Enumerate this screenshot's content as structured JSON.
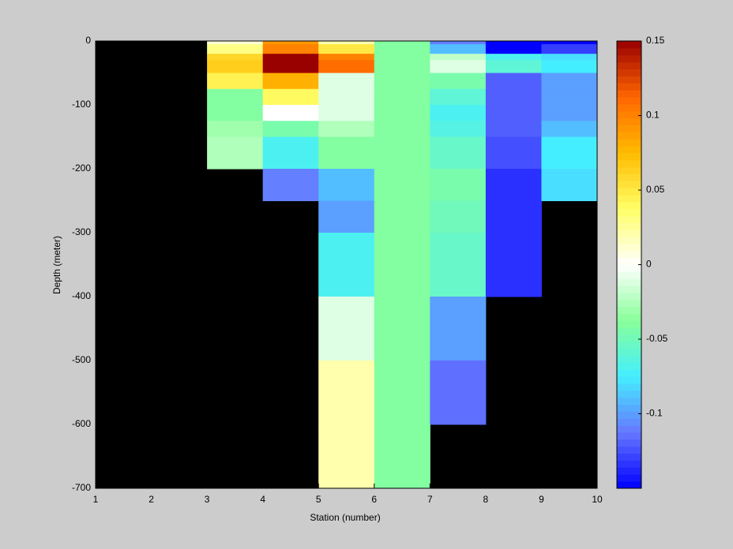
{
  "chart_data": {
    "type": "heatmap",
    "x_label": "Station (number)",
    "y_label": "Depth (meter)",
    "x_bins": [
      1,
      2,
      3,
      4,
      5,
      6,
      7,
      8,
      9,
      10
    ],
    "y_bins": [
      0,
      -5,
      -20,
      -30,
      -50,
      -75,
      -100,
      -125,
      -150,
      -200,
      -250,
      -300,
      -400,
      -500,
      -600,
      -700
    ],
    "values": [
      [
        null,
        null,
        0.01,
        0.09,
        0.02,
        -0.04,
        -0.11,
        -0.15,
        -0.15
      ],
      [
        null,
        null,
        0.03,
        0.1,
        0.05,
        -0.04,
        -0.09,
        -0.15,
        -0.13
      ],
      [
        null,
        null,
        0.06,
        0.15,
        0.1,
        -0.04,
        -0.02,
        -0.07,
        -0.08
      ],
      [
        null,
        null,
        0.065,
        0.15,
        0.11,
        -0.04,
        -0.01,
        -0.06,
        -0.075
      ],
      [
        null,
        null,
        0.045,
        0.08,
        -0.01,
        -0.04,
        -0.045,
        -0.12,
        -0.1
      ],
      [
        null,
        null,
        -0.04,
        0.04,
        -0.01,
        -0.04,
        -0.06,
        -0.12,
        -0.1
      ],
      [
        null,
        null,
        -0.04,
        0.0,
        -0.01,
        -0.04,
        -0.07,
        -0.12,
        -0.1
      ],
      [
        null,
        null,
        -0.03,
        -0.045,
        -0.025,
        -0.04,
        -0.065,
        -0.12,
        -0.09
      ],
      [
        null,
        null,
        -0.025,
        -0.07,
        -0.04,
        -0.04,
        -0.055,
        -0.125,
        -0.075
      ],
      [
        null,
        null,
        null,
        -0.11,
        -0.09,
        -0.04,
        -0.045,
        -0.135,
        -0.08
      ],
      [
        null,
        null,
        null,
        null,
        -0.1,
        -0.04,
        -0.05,
        -0.135,
        null
      ],
      [
        null,
        null,
        null,
        null,
        -0.07,
        -0.04,
        -0.055,
        -0.135,
        null
      ],
      [
        null,
        null,
        null,
        null,
        -0.01,
        -0.04,
        -0.1,
        null,
        null
      ],
      [
        null,
        null,
        null,
        null,
        0.02,
        -0.04,
        -0.115,
        null,
        null
      ],
      [
        null,
        null,
        null,
        null,
        0.02,
        -0.04,
        null,
        null,
        null
      ]
    ],
    "xlim": [
      1,
      10
    ],
    "xticks": [
      1,
      2,
      3,
      4,
      5,
      6,
      7,
      8,
      9,
      10
    ],
    "ylim": [
      -700,
      0
    ],
    "yticks": [
      0,
      -100,
      -200,
      -300,
      -400,
      -500,
      -600,
      -700
    ],
    "clim": [
      -0.15,
      0.15
    ],
    "cticks": [
      -0.1,
      -0.05,
      0,
      0.05,
      0.1,
      0.15
    ],
    "colormap": [
      "#0000ff",
      "#6677ff",
      "#44eeff",
      "#88ff99",
      "#ffffff",
      "#ffff66",
      "#ffbb00",
      "#ff6600",
      "#990000"
    ],
    "missing_color": "#000000"
  }
}
